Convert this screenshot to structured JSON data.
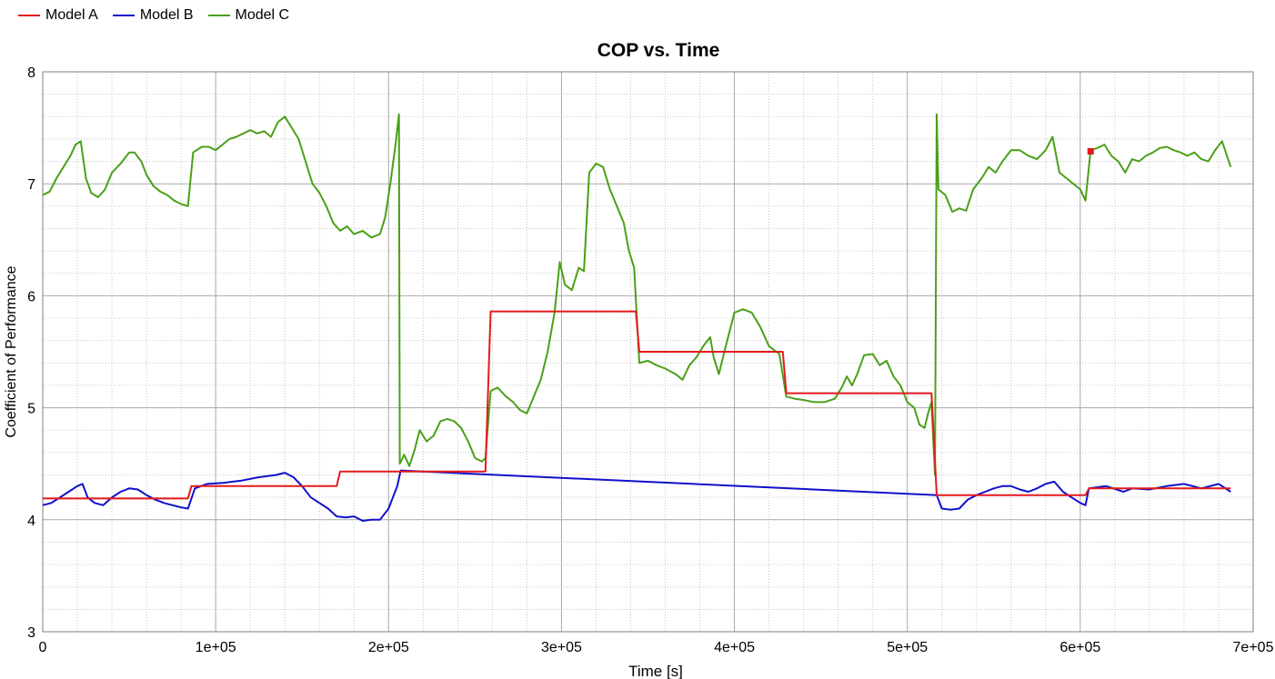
{
  "chart_data": {
    "type": "line",
    "title": "COP vs. Time",
    "xlabel": "Time [s]",
    "ylabel": "Coefficient of Performance",
    "xlim": [
      0,
      700000
    ],
    "ylim": [
      3,
      8
    ],
    "x_ticks": [
      0,
      100000,
      200000,
      300000,
      400000,
      500000,
      600000,
      700000
    ],
    "x_tick_labels": [
      "0",
      "1e+05",
      "2e+05",
      "3e+05",
      "4e+05",
      "5e+05",
      "6e+05",
      "7e+05"
    ],
    "y_ticks": [
      3,
      4,
      5,
      6,
      7,
      8
    ],
    "y_tick_labels": [
      "3",
      "4",
      "5",
      "6",
      "7",
      "8"
    ],
    "grid": true,
    "legend_position": "top-left",
    "series": [
      {
        "name": "Model A",
        "color": "#e41a1c",
        "points": [
          [
            0,
            4.19
          ],
          [
            84000,
            4.19
          ],
          [
            86000,
            4.3
          ],
          [
            170000,
            4.3
          ],
          [
            172000,
            4.43
          ],
          [
            256000,
            4.43
          ],
          [
            259000,
            5.86
          ],
          [
            343000,
            5.86
          ],
          [
            345000,
            5.5
          ],
          [
            428000,
            5.5
          ],
          [
            430000,
            5.13
          ],
          [
            514000,
            5.13
          ],
          [
            517000,
            4.22
          ],
          [
            603000,
            4.22
          ],
          [
            605000,
            4.28
          ],
          [
            687000,
            4.28
          ]
        ]
      },
      {
        "name": "Model B",
        "color": "#1010cc",
        "points": [
          [
            0,
            4.13
          ],
          [
            5000,
            4.15
          ],
          [
            10000,
            4.2
          ],
          [
            15000,
            4.25
          ],
          [
            20000,
            4.3
          ],
          [
            23000,
            4.32
          ],
          [
            26000,
            4.2
          ],
          [
            30000,
            4.15
          ],
          [
            35000,
            4.13
          ],
          [
            40000,
            4.2
          ],
          [
            45000,
            4.25
          ],
          [
            50000,
            4.28
          ],
          [
            55000,
            4.27
          ],
          [
            60000,
            4.22
          ],
          [
            65000,
            4.18
          ],
          [
            70000,
            4.15
          ],
          [
            75000,
            4.13
          ],
          [
            80000,
            4.11
          ],
          [
            84000,
            4.1
          ],
          [
            88000,
            4.28
          ],
          [
            95000,
            4.32
          ],
          [
            105000,
            4.33
          ],
          [
            115000,
            4.35
          ],
          [
            125000,
            4.38
          ],
          [
            135000,
            4.4
          ],
          [
            140000,
            4.42
          ],
          [
            145000,
            4.38
          ],
          [
            150000,
            4.3
          ],
          [
            155000,
            4.2
          ],
          [
            160000,
            4.15
          ],
          [
            165000,
            4.1
          ],
          [
            170000,
            4.03
          ],
          [
            175000,
            4.02
          ],
          [
            180000,
            4.03
          ],
          [
            185000,
            3.99
          ],
          [
            190000,
            4.0
          ],
          [
            195000,
            4.0
          ],
          [
            200000,
            4.1
          ],
          [
            205000,
            4.3
          ],
          [
            207000,
            4.44
          ],
          [
            517000,
            4.22
          ],
          [
            520000,
            4.1
          ],
          [
            525000,
            4.09
          ],
          [
            530000,
            4.1
          ],
          [
            535000,
            4.18
          ],
          [
            540000,
            4.22
          ],
          [
            545000,
            4.25
          ],
          [
            550000,
            4.28
          ],
          [
            555000,
            4.3
          ],
          [
            560000,
            4.3
          ],
          [
            565000,
            4.27
          ],
          [
            570000,
            4.25
          ],
          [
            575000,
            4.28
          ],
          [
            580000,
            4.32
          ],
          [
            585000,
            4.34
          ],
          [
            590000,
            4.25
          ],
          [
            595000,
            4.2
          ],
          [
            600000,
            4.15
          ],
          [
            603000,
            4.13
          ],
          [
            605000,
            4.28
          ],
          [
            615000,
            4.3
          ],
          [
            625000,
            4.25
          ],
          [
            630000,
            4.28
          ],
          [
            640000,
            4.27
          ],
          [
            650000,
            4.3
          ],
          [
            660000,
            4.32
          ],
          [
            670000,
            4.28
          ],
          [
            680000,
            4.32
          ],
          [
            687000,
            4.25
          ]
        ]
      },
      {
        "name": "Model C",
        "color": "#4aa018",
        "points": [
          [
            0,
            6.9
          ],
          [
            4000,
            6.93
          ],
          [
            8000,
            7.05
          ],
          [
            12000,
            7.15
          ],
          [
            16000,
            7.25
          ],
          [
            19000,
            7.35
          ],
          [
            22000,
            7.38
          ],
          [
            25000,
            7.05
          ],
          [
            28000,
            6.92
          ],
          [
            32000,
            6.88
          ],
          [
            36000,
            6.95
          ],
          [
            40000,
            7.1
          ],
          [
            45000,
            7.18
          ],
          [
            50000,
            7.28
          ],
          [
            53000,
            7.28
          ],
          [
            57000,
            7.2
          ],
          [
            60000,
            7.08
          ],
          [
            64000,
            6.98
          ],
          [
            68000,
            6.93
          ],
          [
            72000,
            6.9
          ],
          [
            76000,
            6.85
          ],
          [
            80000,
            6.82
          ],
          [
            84000,
            6.8
          ],
          [
            87000,
            7.28
          ],
          [
            92000,
            7.33
          ],
          [
            96000,
            7.33
          ],
          [
            100000,
            7.3
          ],
          [
            104000,
            7.35
          ],
          [
            108000,
            7.4
          ],
          [
            112000,
            7.42
          ],
          [
            116000,
            7.45
          ],
          [
            120000,
            7.48
          ],
          [
            124000,
            7.45
          ],
          [
            128000,
            7.47
          ],
          [
            132000,
            7.42
          ],
          [
            136000,
            7.55
          ],
          [
            140000,
            7.6
          ],
          [
            144000,
            7.5
          ],
          [
            148000,
            7.4
          ],
          [
            152000,
            7.2
          ],
          [
            156000,
            7.0
          ],
          [
            160000,
            6.92
          ],
          [
            164000,
            6.8
          ],
          [
            168000,
            6.65
          ],
          [
            172000,
            6.58
          ],
          [
            176000,
            6.62
          ],
          [
            180000,
            6.55
          ],
          [
            185000,
            6.58
          ],
          [
            190000,
            6.52
          ],
          [
            195000,
            6.55
          ],
          [
            198000,
            6.7
          ],
          [
            201000,
            7.0
          ],
          [
            204000,
            7.35
          ],
          [
            206000,
            7.62
          ],
          [
            206500,
            4.5
          ],
          [
            209000,
            4.58
          ],
          [
            212000,
            4.48
          ],
          [
            215000,
            4.62
          ],
          [
            218000,
            4.8
          ],
          [
            222000,
            4.7
          ],
          [
            226000,
            4.75
          ],
          [
            230000,
            4.88
          ],
          [
            234000,
            4.9
          ],
          [
            238000,
            4.88
          ],
          [
            242000,
            4.82
          ],
          [
            246000,
            4.7
          ],
          [
            250000,
            4.55
          ],
          [
            254000,
            4.52
          ],
          [
            256000,
            4.55
          ],
          [
            259000,
            5.15
          ],
          [
            263000,
            5.18
          ],
          [
            268000,
            5.1
          ],
          [
            272000,
            5.05
          ],
          [
            276000,
            4.98
          ],
          [
            280000,
            4.95
          ],
          [
            284000,
            5.1
          ],
          [
            288000,
            5.25
          ],
          [
            292000,
            5.5
          ],
          [
            296000,
            5.85
          ],
          [
            299000,
            6.3
          ],
          [
            302000,
            6.1
          ],
          [
            306000,
            6.05
          ],
          [
            310000,
            6.25
          ],
          [
            313000,
            6.22
          ],
          [
            316000,
            7.1
          ],
          [
            320000,
            7.18
          ],
          [
            324000,
            7.15
          ],
          [
            328000,
            6.95
          ],
          [
            332000,
            6.8
          ],
          [
            336000,
            6.65
          ],
          [
            339000,
            6.4
          ],
          [
            342000,
            6.25
          ],
          [
            345000,
            5.4
          ],
          [
            350000,
            5.42
          ],
          [
            355000,
            5.38
          ],
          [
            360000,
            5.35
          ],
          [
            366000,
            5.3
          ],
          [
            370000,
            5.25
          ],
          [
            374000,
            5.38
          ],
          [
            378000,
            5.45
          ],
          [
            382000,
            5.55
          ],
          [
            386000,
            5.63
          ],
          [
            388000,
            5.45
          ],
          [
            391000,
            5.3
          ],
          [
            395000,
            5.55
          ],
          [
            400000,
            5.85
          ],
          [
            405000,
            5.88
          ],
          [
            410000,
            5.85
          ],
          [
            415000,
            5.72
          ],
          [
            420000,
            5.55
          ],
          [
            426000,
            5.48
          ],
          [
            430000,
            5.1
          ],
          [
            435000,
            5.08
          ],
          [
            440000,
            5.07
          ],
          [
            446000,
            5.05
          ],
          [
            452000,
            5.05
          ],
          [
            458000,
            5.08
          ],
          [
            462000,
            5.18
          ],
          [
            465000,
            5.28
          ],
          [
            468000,
            5.2
          ],
          [
            471000,
            5.3
          ],
          [
            475000,
            5.47
          ],
          [
            480000,
            5.48
          ],
          [
            484000,
            5.38
          ],
          [
            488000,
            5.42
          ],
          [
            492000,
            5.28
          ],
          [
            496000,
            5.2
          ],
          [
            500000,
            5.05
          ],
          [
            504000,
            5.0
          ],
          [
            507000,
            4.85
          ],
          [
            510000,
            4.82
          ],
          [
            512000,
            4.95
          ],
          [
            514000,
            5.05
          ],
          [
            516000,
            4.4
          ],
          [
            517000,
            7.62
          ],
          [
            518000,
            6.95
          ],
          [
            522000,
            6.9
          ],
          [
            526000,
            6.75
          ],
          [
            530000,
            6.78
          ],
          [
            534000,
            6.76
          ],
          [
            538000,
            6.95
          ],
          [
            543000,
            7.05
          ],
          [
            547000,
            7.15
          ],
          [
            551000,
            7.1
          ],
          [
            555000,
            7.2
          ],
          [
            560000,
            7.3
          ],
          [
            565000,
            7.3
          ],
          [
            570000,
            7.25
          ],
          [
            575000,
            7.22
          ],
          [
            580000,
            7.3
          ],
          [
            584000,
            7.42
          ],
          [
            588000,
            7.1
          ],
          [
            592000,
            7.05
          ],
          [
            596000,
            7.0
          ],
          [
            600000,
            6.95
          ],
          [
            603000,
            6.85
          ],
          [
            606000,
            7.3
          ],
          [
            610000,
            7.32
          ],
          [
            614000,
            7.35
          ],
          [
            618000,
            7.25
          ],
          [
            622000,
            7.2
          ],
          [
            626000,
            7.1
          ],
          [
            630000,
            7.22
          ],
          [
            634000,
            7.2
          ],
          [
            638000,
            7.25
          ],
          [
            642000,
            7.28
          ],
          [
            646000,
            7.32
          ],
          [
            650000,
            7.33
          ],
          [
            654000,
            7.3
          ],
          [
            658000,
            7.28
          ],
          [
            662000,
            7.25
          ],
          [
            666000,
            7.28
          ],
          [
            670000,
            7.22
          ],
          [
            674000,
            7.2
          ],
          [
            678000,
            7.3
          ],
          [
            682000,
            7.38
          ],
          [
            687000,
            7.15
          ]
        ]
      }
    ],
    "markers": [
      {
        "series": "Model A",
        "x": 606000,
        "y": 7.29,
        "color": "#e41a1c"
      }
    ]
  }
}
